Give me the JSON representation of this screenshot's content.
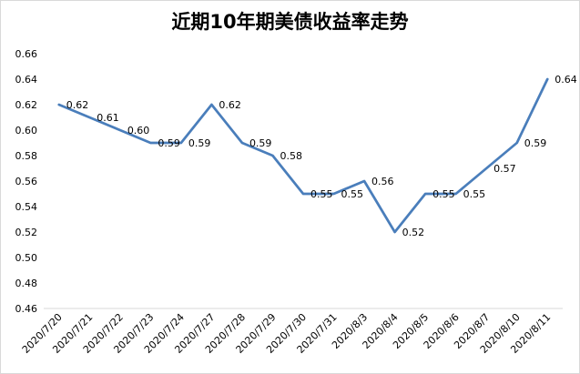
{
  "chart_data": {
    "type": "line",
    "title": "近期10年期美债收益率走势",
    "xlabel": "",
    "ylabel": "",
    "categories": [
      "2020/7/20",
      "2020/7/21",
      "2020/7/22",
      "2020/7/23",
      "2020/7/24",
      "2020/7/27",
      "2020/7/28",
      "2020/7/29",
      "2020/7/30",
      "2020/7/31",
      "2020/8/3",
      "2020/8/4",
      "2020/8/5",
      "2020/8/6",
      "2020/8/7",
      "2020/8/10",
      "2020/8/11"
    ],
    "series": [
      {
        "values": [
          0.62,
          0.61,
          0.6,
          0.59,
          0.59,
          0.62,
          0.59,
          0.58,
          0.55,
          0.55,
          0.56,
          0.52,
          0.55,
          0.55,
          0.57,
          0.59,
          0.64
        ],
        "labels": [
          "0.62",
          "0.61",
          "0.60",
          "0.59",
          "0.59",
          "0.62",
          "0.59",
          "0.58",
          "0.55",
          "0.55",
          "0.56",
          "0.52",
          "0.55",
          "0.55",
          "0.57",
          "0.59",
          "0.64"
        ]
      }
    ],
    "ylim": [
      0.46,
      0.66
    ],
    "yticks": [
      "0.46",
      "0.48",
      "0.50",
      "0.52",
      "0.54",
      "0.56",
      "0.58",
      "0.60",
      "0.62",
      "0.64",
      "0.66"
    ],
    "grid": false,
    "legend": "none",
    "line_color": "#4a7ebb"
  }
}
